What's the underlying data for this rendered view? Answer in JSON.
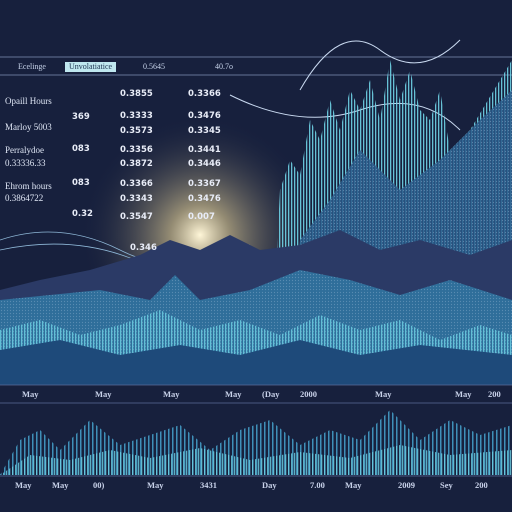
{
  "tabs": [
    "Ecelinge",
    "Unvolatiatice",
    "0.5645",
    "40.7o"
  ],
  "labels": [
    "Opaill Hours",
    "Marloy 5003",
    "Perralydoe",
    "0.33336.33",
    "Ehrom hours",
    "0.3864722"
  ],
  "codes": [
    "369",
    "083",
    "083",
    "0.32"
  ],
  "column_a": [
    "0.3855",
    "0.3333",
    "0.3573",
    "0.3356",
    "0.3872",
    "0.3366",
    "0.3343",
    "0.3547"
  ],
  "column_b": [
    "0.3366",
    "0.3476",
    "0.3345",
    "0.3441",
    "0.3446",
    "0.3367",
    "0.3476",
    "0.007"
  ],
  "annotation": "0.346",
  "axis_top": [
    "May",
    "May",
    "May",
    "May",
    "(Day",
    "2000",
    "May",
    "May",
    "200"
  ],
  "axis_bottom": [
    "May",
    "May",
    "00)",
    "May",
    "3431",
    "Day",
    "7.00",
    "May",
    "2009",
    "Sey",
    "200"
  ]
}
